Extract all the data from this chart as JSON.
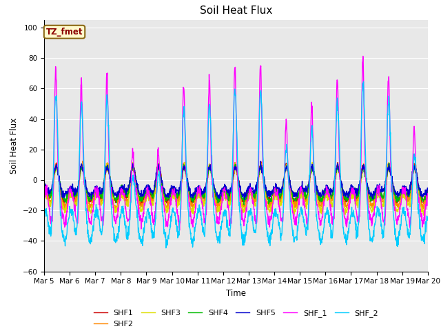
{
  "title": "Soil Heat Flux",
  "xlabel": "Time",
  "ylabel": "Soil Heat Flux",
  "ylim": [
    -60,
    105
  ],
  "yticks": [
    -60,
    -40,
    -20,
    0,
    20,
    40,
    60,
    80,
    100
  ],
  "date_labels": [
    "Mar 5",
    "Mar 6",
    "Mar 7",
    "Mar 8",
    "Mar 9",
    "Mar 10",
    "Mar 11",
    "Mar 12",
    "Mar 13",
    "Mar 14",
    "Mar 15",
    "Mar 16",
    "Mar 17",
    "Mar 18",
    "Mar 19",
    "Mar 20"
  ],
  "annotation_text": "TZ_fmet",
  "annotation_color": "#8B0000",
  "annotation_bg": "#FFFACD",
  "annotation_edge": "#8B6914",
  "series_colors": {
    "SHF1": "#cc0000",
    "SHF2": "#ff8800",
    "SHF3": "#dddd00",
    "SHF4": "#00bb00",
    "SHF5": "#0000cc",
    "SHF_1": "#ff00ff",
    "SHF_2": "#00ccff"
  },
  "bg_color": "#e8e8e8",
  "figsize": [
    6.4,
    4.8
  ],
  "dpi": 100
}
